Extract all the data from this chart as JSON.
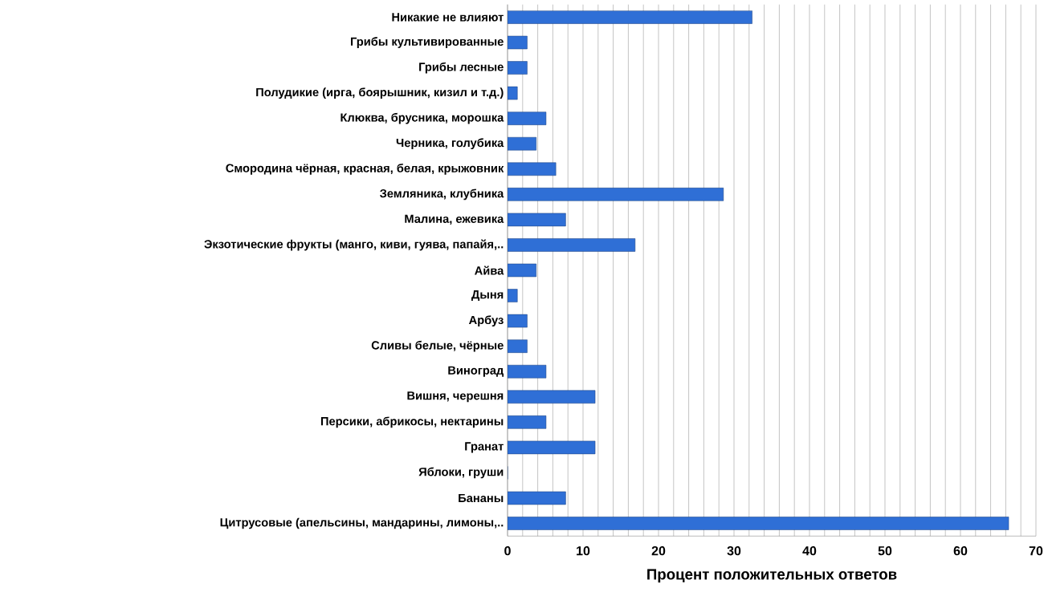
{
  "chart_data": {
    "type": "bar",
    "orientation": "horizontal",
    "xlabel": "Процент положительных ответов",
    "categories": [
      "Никакие не влияют",
      "Грибы культивированные",
      "Грибы лесные",
      "Полудикие (ирга, боярышник, кизил и т.д.)",
      "Клюква, брусника, морошка",
      "Черника, голубика",
      "Смородина чёрная, красная, белая, крыжовник",
      "Земляника, клубника",
      "Малина, ежевика",
      "Экзотические фрукты (манго, киви, гуява, папайя,..",
      "Айва",
      "Дыня",
      "Арбуз",
      "Сливы белые, чёрные",
      "Виноград",
      "Вишня, черешня",
      "Персики, абрикосы, нектарины",
      "Гранат",
      "Яблоки, груши",
      "Бананы",
      "Цитрусовые (апельсины, мандарины, лимоны,.."
    ],
    "values": [
      32.4,
      2.6,
      2.6,
      1.3,
      5.1,
      3.8,
      6.4,
      28.6,
      7.7,
      16.9,
      3.8,
      1.3,
      2.6,
      2.6,
      5.1,
      11.6,
      5.1,
      11.6,
      0,
      7.7,
      66.4
    ],
    "color": "#2f6fd6",
    "xlim": [
      0,
      70
    ],
    "xticks": [
      0,
      {
        "value": 2,
        "label": null
      },
      {
        "value": 4,
        "label": null
      },
      {
        "value": 6,
        "label": null
      },
      {
        "value": 8,
        "label": null
      },
      10,
      {
        "value": 12,
        "label": null
      },
      {
        "value": 14,
        "label": null
      },
      {
        "value": 16,
        "label": null
      },
      {
        "value": 18,
        "label": null
      },
      20,
      {
        "value": 22,
        "label": null
      },
      {
        "value": 24,
        "label": null
      },
      {
        "value": 26,
        "label": null
      },
      {
        "value": 28,
        "label": null
      },
      30,
      {
        "value": 32,
        "label": null
      },
      {
        "value": 34,
        "label": null
      },
      {
        "value": 36,
        "label": null
      },
      {
        "value": 38,
        "label": null
      },
      40,
      {
        "value": 42,
        "label": null
      },
      {
        "value": 44,
        "label": null
      },
      {
        "value": 46,
        "label": null
      },
      {
        "value": 48,
        "label": null
      },
      50,
      {
        "value": 52,
        "label": null
      },
      {
        "value": 54,
        "label": null
      },
      {
        "value": 56,
        "label": null
      },
      {
        "value": 58,
        "label": null
      },
      60,
      {
        "value": 62,
        "label": null
      },
      {
        "value": 64,
        "label": null
      },
      {
        "value": 66,
        "label": null
      },
      {
        "value": 68,
        "label": null
      },
      70
    ],
    "grid": "x"
  }
}
